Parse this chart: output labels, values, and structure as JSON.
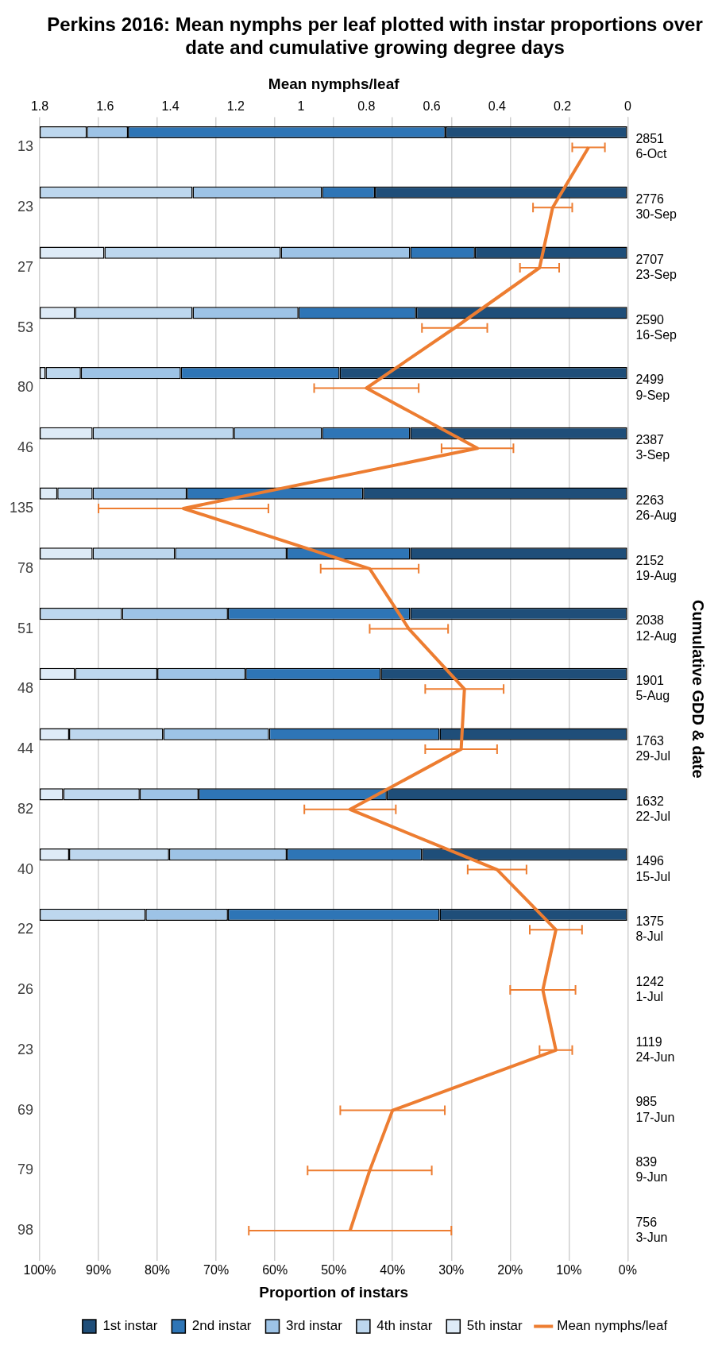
{
  "chart_data": {
    "type": "bar",
    "orientation": "horizontal",
    "title": "Perkins 2016: Mean nymphs per leaf plotted with instar proportions over date and cumulative growing degree days",
    "xlabel": "Proportion of instars",
    "x2label": "Mean nymphs/leaf",
    "ylabel": "Cumulative GDD & date",
    "categories": [
      "2851\n6-Oct",
      "2776\n30-Sep",
      "2707\n23-Sep",
      "2590\n16-Sep",
      "2499\n9-Sep",
      "2387\n3-Sep",
      "2263\n26-Aug",
      "2152\n19-Aug",
      "2038\n12-Aug",
      "1901\n5-Aug",
      "1763\n29-Jul",
      "1632\n22-Jul",
      "1496\n15-Jul",
      "1375\n8-Jul",
      "1242\n1-Jul",
      "1119\n24-Jun",
      "985\n17-Jun",
      "839\n9-Jun",
      "756\n3-Jun"
    ],
    "series": [
      {
        "name": "1st instar",
        "color": "#1f4e79",
        "values": [
          31,
          43,
          26,
          36,
          49,
          37,
          45,
          37,
          37,
          42,
          32,
          41,
          35,
          32,
          null,
          null,
          null,
          null,
          null
        ]
      },
      {
        "name": "2nd instar",
        "color": "#2e75b6",
        "values": [
          54,
          9,
          11,
          20,
          27,
          15,
          30,
          21,
          31,
          23,
          29,
          32,
          23,
          36,
          null,
          null,
          null,
          null,
          null
        ]
      },
      {
        "name": "3rd instar",
        "color": "#9dc3e6",
        "values": [
          7,
          22,
          22,
          18,
          17,
          15,
          16,
          19,
          18,
          15,
          18,
          10,
          20,
          14,
          null,
          null,
          null,
          null,
          null
        ]
      },
      {
        "name": "4th instar",
        "color": "#bdd7ee",
        "values": [
          8,
          26,
          30,
          20,
          6,
          24,
          6,
          14,
          14,
          14,
          16,
          13,
          17,
          18,
          null,
          null,
          null,
          null,
          null
        ]
      },
      {
        "name": "5th instar",
        "color": "#deebf7",
        "values": [
          0,
          0,
          11,
          6,
          1,
          9,
          3,
          9,
          0,
          6,
          5,
          4,
          5,
          0,
          null,
          null,
          null,
          null,
          null
        ]
      },
      {
        "name": "Mean nymphs/leaf",
        "type": "line",
        "color": "#ed7d31",
        "axis": "x2",
        "values": [
          0.12,
          0.23,
          0.27,
          0.53,
          0.8,
          0.46,
          1.36,
          0.79,
          0.67,
          0.5,
          0.51,
          0.85,
          0.4,
          0.22,
          0.26,
          0.22,
          0.72,
          0.79,
          0.85
        ],
        "errors": [
          0.05,
          0.06,
          0.06,
          0.1,
          0.16,
          0.11,
          0.26,
          0.15,
          0.12,
          0.12,
          0.11,
          0.14,
          0.09,
          0.08,
          0.1,
          0.05,
          0.16,
          0.19,
          0.31
        ]
      }
    ],
    "stacked": true,
    "marker": "none",
    "grid": "x",
    "legend": "bottom",
    "x2lim": [
      1.8,
      0
    ],
    "x2ticks": [
      0,
      0.2,
      0.4,
      0.6,
      0.8,
      1,
      1.2,
      1.4,
      1.6,
      1.8
    ],
    "xlim": [
      100,
      0
    ],
    "xticks": [
      {
        "value": 0,
        "label": "0%"
      },
      {
        "value": 10,
        "label": "10%"
      },
      {
        "value": 20,
        "label": "20%"
      },
      {
        "value": 30,
        "label": "30%"
      },
      {
        "value": 40,
        "label": "40%"
      },
      {
        "value": 50,
        "label": "50%"
      },
      {
        "value": 60,
        "label": "60%"
      },
      {
        "value": 70,
        "label": "70%"
      },
      {
        "value": 80,
        "label": "80%"
      },
      {
        "value": 90,
        "label": "90%"
      },
      {
        "value": 100,
        "label": "100%"
      }
    ],
    "annotations": [
      "13",
      "23",
      "27",
      "53",
      "80",
      "46",
      "135",
      "78",
      "51",
      "48",
      "44",
      "82",
      "40",
      "22",
      "26",
      "23",
      "69",
      "79",
      "98"
    ]
  }
}
